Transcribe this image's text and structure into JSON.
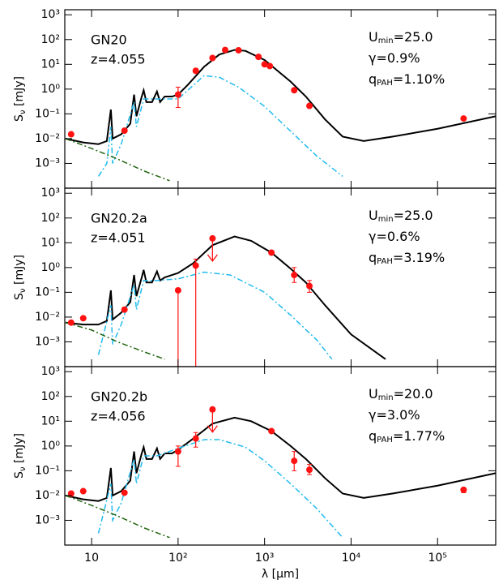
{
  "chart_data": [
    {
      "type": "line",
      "xscale": "log",
      "yscale": "log",
      "xlim": [
        4.9,
        470000
      ],
      "ylim": [
        0.0001,
        1600
      ],
      "ylabel": {
        "text": "S",
        "sub": "ν",
        "rest": " [mJy]"
      },
      "yticks": [
        {
          "value": 1000,
          "label": "10³"
        },
        {
          "value": 100,
          "label": "10²"
        },
        {
          "value": 10,
          "label": "10¹"
        },
        {
          "value": 1,
          "label": "10⁰"
        },
        {
          "value": 0.1,
          "label": "10⁻¹"
        },
        {
          "value": 0.01,
          "label": "10⁻²"
        },
        {
          "value": 0.001,
          "label": "10⁻³"
        }
      ],
      "annotations": {
        "name": "GN20",
        "redshift": "z=4.055",
        "params": [
          {
            "text": "U",
            "sub": "min",
            "rest": "=25.0"
          },
          {
            "text": "γ=0.9%"
          },
          {
            "text": "q",
            "sub": "PAH",
            "rest": "=1.10%"
          }
        ]
      },
      "curves": [
        {
          "color": "#000000",
          "dash": "solid",
          "x": [
            5,
            8,
            12,
            15,
            16.7,
            17.5,
            22,
            28,
            31,
            33,
            38,
            40,
            43,
            50,
            57,
            62,
            70,
            85,
            100,
            130,
            200,
            300,
            450,
            600,
            1000,
            2000,
            3000,
            5000,
            8000,
            14000,
            30000,
            100000,
            470000
          ],
          "values": [
            0.01,
            0.007,
            0.006,
            0.008,
            0.15,
            0.01,
            0.015,
            0.04,
            0.6,
            0.08,
            0.5,
            0.9,
            0.3,
            0.3,
            0.8,
            0.3,
            0.5,
            0.5,
            0.6,
            1.5,
            8,
            25,
            38,
            35,
            15,
            2,
            0.5,
            0.06,
            0.012,
            0.008,
            0.012,
            0.025,
            0.08
          ]
        },
        {
          "color": "#22bbee",
          "dash": "dashdot",
          "x": [
            12,
            15,
            16.7,
            17.5,
            22,
            31,
            33,
            40,
            57,
            100,
            200,
            300,
            500,
            1000,
            2000,
            4000,
            8000
          ],
          "values": [
            0.0003,
            0.001,
            0.03,
            0.001,
            0.006,
            0.3,
            0.03,
            0.4,
            0.4,
            0.4,
            3.5,
            3,
            1.2,
            0.2,
            0.02,
            0.002,
            0.0003
          ]
        },
        {
          "color": "#226611",
          "dash": "dashdot",
          "x": [
            5,
            10,
            20,
            40,
            80
          ],
          "values": [
            0.01,
            0.004,
            0.0015,
            0.0005,
            0.0002
          ]
        }
      ],
      "points": {
        "color": "#ff1111",
        "x": [
          5.8,
          24,
          100,
          160,
          250,
          350,
          500,
          850,
          1000,
          1150,
          2200,
          3300,
          200000
        ],
        "values": [
          0.015,
          0.021,
          0.6,
          5.5,
          18,
          38,
          37,
          20,
          10,
          8.5,
          0.9,
          0.21,
          0.065
        ],
        "lower": [
          null,
          null,
          0.18,
          null,
          null,
          null,
          null,
          null,
          null,
          null,
          null,
          null,
          null
        ],
        "upper": [
          null,
          null,
          1.2,
          null,
          null,
          null,
          null,
          null,
          null,
          null,
          null,
          null,
          null
        ],
        "upper_limits": [
          false,
          false,
          false,
          false,
          false,
          false,
          false,
          false,
          false,
          false,
          false,
          false,
          false
        ]
      }
    },
    {
      "type": "line",
      "xscale": "log",
      "yscale": "log",
      "xlim": [
        4.9,
        470000
      ],
      "ylim": [
        0.0001,
        1600
      ],
      "ylabel": {
        "text": "S",
        "sub": "ν",
        "rest": " [mJy]"
      },
      "yticks": [
        {
          "value": 1000,
          "label": "10³"
        },
        {
          "value": 100,
          "label": "10²"
        },
        {
          "value": 10,
          "label": "10¹"
        },
        {
          "value": 1,
          "label": "10⁰"
        },
        {
          "value": 0.1,
          "label": "10⁻¹"
        },
        {
          "value": 0.01,
          "label": "10⁻²"
        },
        {
          "value": 0.001,
          "label": "10⁻³"
        }
      ],
      "annotations": {
        "name": "GN20.2a",
        "redshift": "z=4.051",
        "params": [
          {
            "text": "U",
            "sub": "min",
            "rest": "=25.0"
          },
          {
            "text": "γ=0.6%"
          },
          {
            "text": "q",
            "sub": "PAH",
            "rest": "=3.19%"
          }
        ]
      },
      "curves": [
        {
          "color": "#000000",
          "dash": "solid",
          "x": [
            5,
            8,
            12,
            15,
            16.7,
            17.5,
            22,
            28,
            31,
            33,
            38,
            40,
            43,
            50,
            57,
            62,
            70,
            85,
            100,
            150,
            250,
            450,
            700,
            1200,
            2000,
            3000,
            5000,
            10000,
            25000
          ],
          "values": [
            0.006,
            0.005,
            0.005,
            0.007,
            0.12,
            0.008,
            0.015,
            0.04,
            0.5,
            0.07,
            0.4,
            0.8,
            0.25,
            0.25,
            0.7,
            0.3,
            0.4,
            0.5,
            0.6,
            1.5,
            8,
            18,
            12,
            4,
            0.9,
            0.25,
            0.03,
            0.002,
            0.0002
          ]
        },
        {
          "color": "#22bbee",
          "dash": "dashdot",
          "x": [
            12,
            16.7,
            17.5,
            22,
            31,
            33,
            40,
            57,
            100,
            200,
            400,
            1000,
            2000,
            4000,
            6000
          ],
          "values": [
            0.0003,
            0.03,
            0.0008,
            0.005,
            0.2,
            0.02,
            0.3,
            0.3,
            0.35,
            0.65,
            0.5,
            0.1,
            0.012,
            0.0012,
            0.0002
          ]
        },
        {
          "color": "#226611",
          "dash": "dashdot",
          "x": [
            5,
            10,
            20,
            40,
            70
          ],
          "values": [
            0.006,
            0.003,
            0.001,
            0.0004,
            0.0002
          ]
        }
      ],
      "points": {
        "color": "#ff1111",
        "x": [
          5.8,
          8,
          24,
          100,
          160,
          250,
          1200,
          2200,
          3300
        ],
        "values": [
          0.006,
          0.009,
          0.02,
          0.12,
          1.2,
          15,
          4,
          0.5,
          0.18
        ],
        "lower": [
          null,
          null,
          null,
          0,
          0,
          null,
          null,
          0.25,
          0.1
        ],
        "upper": [
          null,
          null,
          null,
          null,
          2.2,
          null,
          null,
          1.0,
          0.3
        ],
        "upper_limits": [
          false,
          false,
          false,
          false,
          false,
          true,
          false,
          false,
          false
        ]
      }
    },
    {
      "type": "line",
      "xscale": "log",
      "yscale": "log",
      "xlim": [
        4.9,
        470000
      ],
      "ylim": [
        0.0001,
        1600
      ],
      "ylabel": {
        "text": "S",
        "sub": "ν",
        "rest": " [mJy]"
      },
      "xlabel": "λ [μm]",
      "xticks": [
        10,
        {
          "value": 100,
          "label": "10²"
        },
        {
          "value": 1000,
          "label": "10³"
        },
        {
          "value": 10000,
          "label": "10⁴"
        },
        {
          "value": 100000,
          "label": "10⁵"
        }
      ],
      "yticks": [
        {
          "value": 1000,
          "label": "10³"
        },
        {
          "value": 100,
          "label": "10²"
        },
        {
          "value": 10,
          "label": "10¹"
        },
        {
          "value": 1,
          "label": "10⁰"
        },
        {
          "value": 0.1,
          "label": "10⁻¹"
        },
        {
          "value": 0.01,
          "label": "10⁻²"
        },
        {
          "value": 0.001,
          "label": "10⁻³"
        }
      ],
      "annotations": {
        "name": "GN20.2b",
        "redshift": "z=4.056",
        "params": [
          {
            "text": "U",
            "sub": "min",
            "rest": "=20.0"
          },
          {
            "text": "γ=3.0%"
          },
          {
            "text": "q",
            "sub": "PAH",
            "rest": "=1.77%"
          }
        ]
      },
      "curves": [
        {
          "color": "#000000",
          "dash": "solid",
          "x": [
            5,
            8,
            12,
            15,
            16.7,
            17.5,
            22,
            28,
            31,
            33,
            38,
            40,
            43,
            50,
            57,
            62,
            70,
            85,
            100,
            150,
            250,
            450,
            700,
            1200,
            2000,
            3000,
            5000,
            8000,
            14000,
            30000,
            100000,
            470000
          ],
          "values": [
            0.01,
            0.007,
            0.006,
            0.008,
            0.13,
            0.01,
            0.015,
            0.04,
            0.6,
            0.08,
            0.5,
            0.9,
            0.3,
            0.3,
            0.8,
            0.3,
            0.5,
            0.5,
            0.7,
            2,
            8,
            14,
            10,
            4,
            1,
            0.3,
            0.05,
            0.012,
            0.008,
            0.012,
            0.025,
            0.08
          ]
        },
        {
          "color": "#22bbee",
          "dash": "dashdot",
          "x": [
            12,
            16.7,
            17.5,
            22,
            31,
            33,
            40,
            57,
            100,
            200,
            300,
            600,
            1000,
            2000,
            4000,
            8000
          ],
          "values": [
            0.0003,
            0.03,
            0.001,
            0.005,
            0.3,
            0.03,
            0.4,
            0.4,
            0.8,
            1.8,
            1.8,
            0.9,
            0.25,
            0.03,
            0.003,
            0.0002
          ]
        },
        {
          "color": "#226611",
          "dash": "dashdot",
          "x": [
            5,
            10,
            20,
            40,
            80
          ],
          "values": [
            0.01,
            0.004,
            0.0015,
            0.0005,
            0.0002
          ]
        }
      ],
      "points": {
        "color": "#ff1111",
        "x": [
          5.8,
          8,
          24,
          100,
          160,
          250,
          1200,
          2200,
          3300,
          200000
        ],
        "values": [
          0.012,
          0.015,
          0.013,
          0.6,
          2,
          30,
          4,
          0.25,
          0.11,
          0.017
        ],
        "lower": [
          null,
          null,
          null,
          0.15,
          0.9,
          null,
          null,
          0.1,
          0.07,
          0.013
        ],
        "upper": [
          null,
          null,
          null,
          1.0,
          3.5,
          null,
          null,
          0.6,
          0.18,
          0.02
        ],
        "upper_limits": [
          false,
          false,
          false,
          false,
          false,
          true,
          false,
          false,
          false,
          false
        ]
      }
    }
  ]
}
